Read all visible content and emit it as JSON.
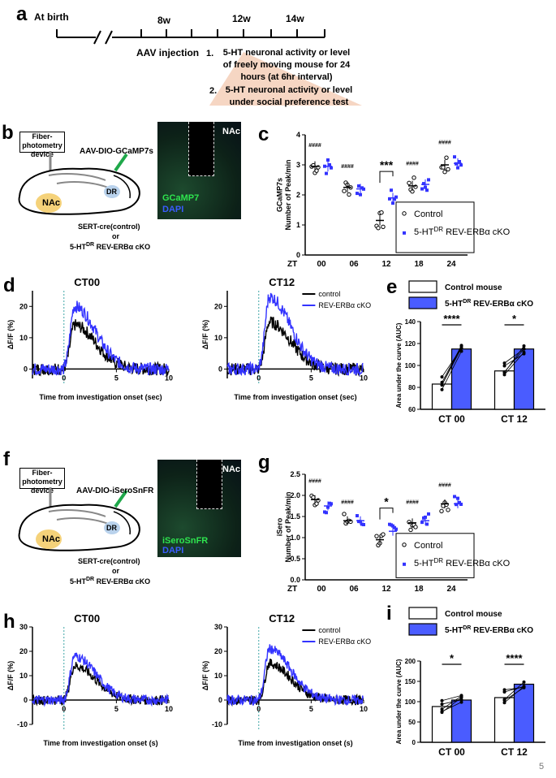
{
  "panels": {
    "a": "a",
    "b": "b",
    "c": "c",
    "d": "d",
    "e": "e",
    "f": "f",
    "g": "g",
    "h": "h",
    "i": "i"
  },
  "timeline": {
    "at_birth": "At birth",
    "t8": "8w",
    "t12": "12w",
    "t14": "14w",
    "aav": "AAV injection",
    "step1_num": "1.",
    "step1": "5-HT neuronal activity or level of freely moving mouse for 24 hours (at 6hr interval)",
    "step2_num": "2.",
    "step2": "5-HT neuronal activity or level under social preference test"
  },
  "schematic_b": {
    "device": "Fiber-photometry device",
    "virus": "AAV-DIO-GCaMP7s",
    "nac": "NAc",
    "dr": "DR",
    "line1": "SERT-cre(control)",
    "line2": "or",
    "line3": "5-HT",
    "line3_sup": "DR",
    "line3_tail": " REV-ERBα cKO",
    "img_nac": "NAc",
    "img_ch1": "GCaMP7",
    "img_ch2": "DAPI"
  },
  "schematic_f": {
    "device": "Fiber-photometry device",
    "virus": "AAV-DIO-iSeroSnFR",
    "nac": "NAc",
    "dr": "DR",
    "line1": "SERT-cre(control)",
    "line2": "or",
    "line3": "5-HT",
    "line3_sup": "DR",
    "line3_tail": " REV-ERBα cKO",
    "img_nac": "NAc",
    "img_ch1": "iSeroSnFR",
    "img_ch2": "DAPI"
  },
  "colors": {
    "control": "#000000",
    "cko": "#3333ff",
    "cko_bar": "#4a5cff",
    "dashed": "#3fa6a6"
  },
  "chart_data": [
    {
      "id": "c",
      "type": "scatter",
      "ylabel": "GCaMP7s Number of Peak/min",
      "xlabel_prefix": "ZT",
      "categories": [
        "00",
        "06",
        "12",
        "18",
        "24"
      ],
      "yticks": [
        "0",
        "1",
        "2",
        "3",
        "4"
      ],
      "ylim": [
        0,
        4
      ],
      "series": [
        {
          "name": "Control",
          "means": [
            2.95,
            2.25,
            1.15,
            2.3,
            3.0
          ]
        },
        {
          "name": "5-HT DR REV-ERBα cKO",
          "means": [
            2.95,
            2.2,
            1.9,
            2.35,
            3.05
          ]
        }
      ],
      "annotations": [
        "####",
        "####",
        "***",
        "####",
        "####"
      ],
      "legend": [
        "Control",
        "5-HT",
        "DR",
        " REV-ERBα cKO"
      ]
    },
    {
      "id": "d",
      "type": "line",
      "panels": [
        "CT00",
        "CT12"
      ],
      "ylabel": "ΔF/F (%)",
      "xlabel": "Time from investigation onset (sec)",
      "xticks": [
        "0",
        "5",
        "10"
      ],
      "yticks": [
        "0",
        "10",
        "20"
      ],
      "ylim": [
        -3,
        25
      ],
      "series": [
        {
          "name": "control"
        },
        {
          "name": "REV-ERBα cKO"
        }
      ]
    },
    {
      "id": "e",
      "type": "bar",
      "ylabel": "Area under the curve (AUC)",
      "categories": [
        "CT 00",
        "CT 12"
      ],
      "yticks": [
        "60",
        "80",
        "100",
        "120",
        "140"
      ],
      "ylim": [
        60,
        140
      ],
      "series": [
        {
          "name": "Control mouse",
          "values": [
            83,
            95
          ]
        },
        {
          "name": "5-HT DR REV-ERBα cKO",
          "values": [
            115,
            115
          ]
        }
      ],
      "significance": [
        "****",
        "*"
      ],
      "legend": [
        "Control mouse",
        "5-HT",
        "DR",
        " REV-ERBα cKO"
      ]
    },
    {
      "id": "g",
      "type": "scatter",
      "ylabel": "iSero Number of Peak/min",
      "xlabel_prefix": "ZT",
      "categories": [
        "00",
        "06",
        "12",
        "18",
        "24"
      ],
      "yticks": [
        "0.0",
        "0.5",
        "1.0",
        "1.5",
        "2.0",
        "2.5"
      ],
      "ylim": [
        0,
        2.5
      ],
      "series": [
        {
          "name": "Control",
          "means": [
            1.9,
            1.4,
            0.95,
            1.35,
            1.8
          ]
        },
        {
          "name": "5-HT DR REV-ERBα cKO",
          "means": [
            1.75,
            1.4,
            1.15,
            1.4,
            1.8
          ]
        }
      ],
      "annotations": [
        "####",
        "####",
        "*",
        "####",
        "####"
      ],
      "legend": [
        "Control",
        "5-HT",
        "DR",
        " REV-ERBα cKO"
      ]
    },
    {
      "id": "h",
      "type": "line",
      "panels": [
        "CT00",
        "CT12"
      ],
      "ylabel": "ΔF/F (%)",
      "xlabel": "Time from investigation onset (s)",
      "xticks": [
        "0",
        "5",
        "10"
      ],
      "yticks": [
        "-10",
        "0",
        "10",
        "20",
        "30"
      ],
      "ylim": [
        -10,
        30
      ],
      "series": [
        {
          "name": "control"
        },
        {
          "name": "REV-ERBα cKO"
        }
      ]
    },
    {
      "id": "i",
      "type": "bar",
      "ylabel": "Area under the curve (AUC)",
      "categories": [
        "CT 00",
        "CT 12"
      ],
      "yticks": [
        "0",
        "50",
        "100",
        "150",
        "200"
      ],
      "ylim": [
        0,
        200
      ],
      "series": [
        {
          "name": "Control mouse",
          "values": [
            88,
            110
          ]
        },
        {
          "name": "5-HT DR REV-ERBα cKO",
          "values": [
            104,
            143
          ]
        }
      ],
      "significance": [
        "*",
        "****"
      ],
      "legend": [
        "Control mouse",
        "5-HT",
        "DR",
        " REV-ERBα cKO"
      ]
    }
  ],
  "page_number": "5"
}
